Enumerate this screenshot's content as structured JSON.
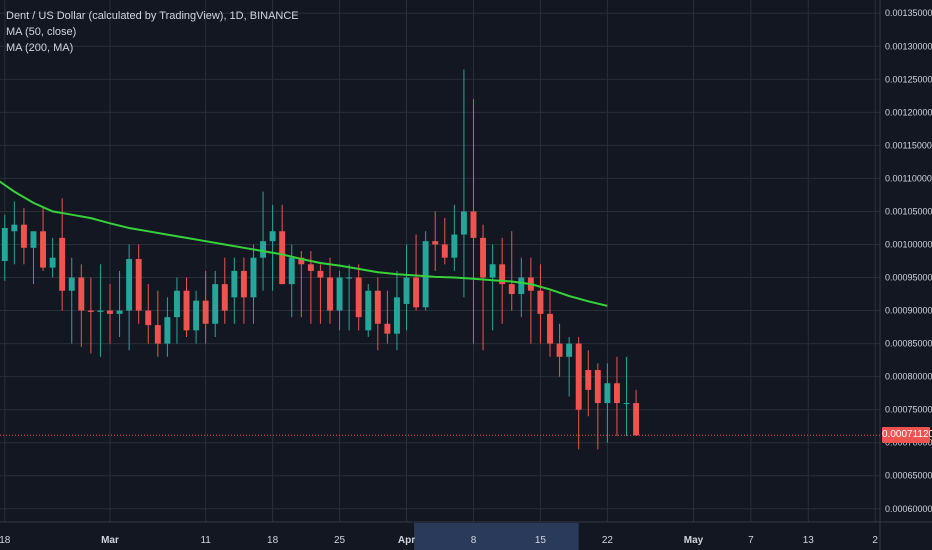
{
  "legend": {
    "symbol": "Dent / US Dollar (calculated by TradingView), 1D, BINANCE",
    "ma1": "MA (50, close)",
    "ma2": "MA (200, MA)"
  },
  "last_price": {
    "label": "0.00071120",
    "value": 0.0007112
  },
  "colors": {
    "background": "#131722",
    "grid": "#2a2e39",
    "up": "#26a69a",
    "down": "#ef5350",
    "ma": "#35d23a",
    "axis_text": "#d1d4dc",
    "highlight": "#2a3a5a"
  },
  "chart_data": {
    "type": "candlestick",
    "ylim": [
      0.00058,
      0.00137
    ],
    "y_ticks": [
      0.0006,
      0.00065,
      0.0007,
      0.00075,
      0.0008,
      0.00085,
      0.0009,
      0.00095,
      0.001,
      0.00105,
      0.0011,
      0.00115,
      0.0012,
      0.00125,
      0.0013,
      0.00135
    ],
    "y_tick_labels": [
      "0.00060000",
      "0.00065000",
      "0.00070000",
      "0.00075000",
      "0.00080000",
      "0.00085000",
      "0.00090000",
      "0.00095000",
      "0.00100000",
      "0.00105000",
      "0.00110000",
      "0.00115000",
      "0.00120000",
      "0.00125000",
      "0.00130000",
      "0.00135000"
    ],
    "x_ticks": [
      {
        "label": "18",
        "day": 0
      },
      {
        "label": "Mar",
        "day": 11
      },
      {
        "label": "11",
        "day": 21
      },
      {
        "label": "18",
        "day": 28
      },
      {
        "label": "25",
        "day": 35
      },
      {
        "label": "Apr",
        "day": 42
      },
      {
        "label": "8",
        "day": 49
      },
      {
        "label": "15",
        "day": 56
      },
      {
        "label": "22",
        "day": 63
      },
      {
        "label": "May",
        "day": 72
      },
      {
        "label": "7",
        "day": 78
      },
      {
        "label": "13",
        "day": 84
      },
      {
        "label": "2",
        "day": 91
      }
    ],
    "x_range_days": [
      -0.5,
      91.5
    ],
    "highlight_days": [
      43,
      60
    ],
    "candles": [
      {
        "o": 0.000975,
        "h": 0.001045,
        "l": 0.000945,
        "c": 0.001025
      },
      {
        "o": 0.00102,
        "h": 0.001065,
        "l": 0.00097,
        "c": 0.00103
      },
      {
        "o": 0.00103,
        "h": 0.001055,
        "l": 0.00097,
        "c": 0.000995
      },
      {
        "o": 0.000995,
        "h": 0.001015,
        "l": 0.00094,
        "c": 0.00102
      },
      {
        "o": 0.00102,
        "h": 0.001055,
        "l": 0.00096,
        "c": 0.000965
      },
      {
        "o": 0.000965,
        "h": 0.00101,
        "l": 0.00095,
        "c": 0.00098
      },
      {
        "o": 0.00101,
        "h": 0.00107,
        "l": 0.0009,
        "c": 0.00093
      },
      {
        "o": 0.00093,
        "h": 0.00098,
        "l": 0.00085,
        "c": 0.00095
      },
      {
        "o": 0.00095,
        "h": 0.00097,
        "l": 0.000845,
        "c": 0.0009
      },
      {
        "o": 0.0009,
        "h": 0.00095,
        "l": 0.000835,
        "c": 0.000898
      },
      {
        "o": 0.000898,
        "h": 0.00097,
        "l": 0.00083,
        "c": 0.0009
      },
      {
        "o": 0.0009,
        "h": 0.00094,
        "l": 0.00085,
        "c": 0.000895
      },
      {
        "o": 0.000895,
        "h": 0.00096,
        "l": 0.00086,
        "c": 0.0009
      },
      {
        "o": 0.0009,
        "h": 0.001,
        "l": 0.00084,
        "c": 0.000978
      },
      {
        "o": 0.000978,
        "h": 0.001,
        "l": 0.00088,
        "c": 0.0009
      },
      {
        "o": 0.0009,
        "h": 0.00094,
        "l": 0.00085,
        "c": 0.000878
      },
      {
        "o": 0.000878,
        "h": 0.00093,
        "l": 0.00083,
        "c": 0.00085
      },
      {
        "o": 0.00085,
        "h": 0.00092,
        "l": 0.00083,
        "c": 0.00089
      },
      {
        "o": 0.00089,
        "h": 0.00095,
        "l": 0.00085,
        "c": 0.00093
      },
      {
        "o": 0.00093,
        "h": 0.00095,
        "l": 0.00086,
        "c": 0.00087
      },
      {
        "o": 0.00087,
        "h": 0.00093,
        "l": 0.00085,
        "c": 0.000915
      },
      {
        "o": 0.000915,
        "h": 0.00096,
        "l": 0.00085,
        "c": 0.00088
      },
      {
        "o": 0.00088,
        "h": 0.00096,
        "l": 0.00086,
        "c": 0.00094
      },
      {
        "o": 0.00094,
        "h": 0.00098,
        "l": 0.00088,
        "c": 0.0009
      },
      {
        "o": 0.00092,
        "h": 0.00098,
        "l": 0.00088,
        "c": 0.00096
      },
      {
        "o": 0.00096,
        "h": 0.00098,
        "l": 0.00088,
        "c": 0.00092
      },
      {
        "o": 0.00092,
        "h": 0.001,
        "l": 0.00088,
        "c": 0.00098
      },
      {
        "o": 0.00098,
        "h": 0.00108,
        "l": 0.00093,
        "c": 0.001005
      },
      {
        "o": 0.001005,
        "h": 0.00106,
        "l": 0.00093,
        "c": 0.00102
      },
      {
        "o": 0.00102,
        "h": 0.00106,
        "l": 0.00094,
        "c": 0.00094
      },
      {
        "o": 0.00094,
        "h": 0.001,
        "l": 0.00089,
        "c": 0.00098
      },
      {
        "o": 0.00098,
        "h": 0.00099,
        "l": 0.00089,
        "c": 0.00097
      },
      {
        "o": 0.00097,
        "h": 0.00099,
        "l": 0.00088,
        "c": 0.00096
      },
      {
        "o": 0.00096,
        "h": 0.00097,
        "l": 0.00088,
        "c": 0.00095
      },
      {
        "o": 0.00095,
        "h": 0.00098,
        "l": 0.00088,
        "c": 0.0009
      },
      {
        "o": 0.0009,
        "h": 0.00096,
        "l": 0.00087,
        "c": 0.00095
      },
      {
        "o": 0.00095,
        "h": 0.00097,
        "l": 0.00087,
        "c": 0.00095
      },
      {
        "o": 0.00095,
        "h": 0.00097,
        "l": 0.00087,
        "c": 0.00089
      },
      {
        "o": 0.00087,
        "h": 0.00094,
        "l": 0.00086,
        "c": 0.00093
      },
      {
        "o": 0.00093,
        "h": 0.00095,
        "l": 0.00084,
        "c": 0.00088
      },
      {
        "o": 0.00088,
        "h": 0.00093,
        "l": 0.00085,
        "c": 0.000865
      },
      {
        "o": 0.000865,
        "h": 0.00096,
        "l": 0.00084,
        "c": 0.00092
      },
      {
        "o": 0.00091,
        "h": 0.001,
        "l": 0.00087,
        "c": 0.00095
      },
      {
        "o": 0.00095,
        "h": 0.001015,
        "l": 0.0009,
        "c": 0.000905
      },
      {
        "o": 0.000905,
        "h": 0.00102,
        "l": 0.0009,
        "c": 0.001005
      },
      {
        "o": 0.001005,
        "h": 0.00105,
        "l": 0.00096,
        "c": 0.001
      },
      {
        "o": 0.001,
        "h": 0.00104,
        "l": 0.00097,
        "c": 0.00098
      },
      {
        "o": 0.00098,
        "h": 0.00106,
        "l": 0.00096,
        "c": 0.001015
      },
      {
        "o": 0.001015,
        "h": 0.001265,
        "l": 0.00092,
        "c": 0.00105
      },
      {
        "o": 0.00105,
        "h": 0.00122,
        "l": 0.00085,
        "c": 0.00101
      },
      {
        "o": 0.00101,
        "h": 0.00103,
        "l": 0.00084,
        "c": 0.00095
      },
      {
        "o": 0.00095,
        "h": 0.001,
        "l": 0.00087,
        "c": 0.00097
      },
      {
        "o": 0.00097,
        "h": 0.00101,
        "l": 0.00088,
        "c": 0.00094
      },
      {
        "o": 0.00094,
        "h": 0.00102,
        "l": 0.0009,
        "c": 0.000925
      },
      {
        "o": 0.000925,
        "h": 0.00098,
        "l": 0.00089,
        "c": 0.00095
      },
      {
        "o": 0.00095,
        "h": 0.00098,
        "l": 0.00085,
        "c": 0.00093
      },
      {
        "o": 0.00093,
        "h": 0.00097,
        "l": 0.00085,
        "c": 0.000895
      },
      {
        "o": 0.000895,
        "h": 0.00093,
        "l": 0.00083,
        "c": 0.00085
      },
      {
        "o": 0.00085,
        "h": 0.00088,
        "l": 0.0008,
        "c": 0.00083
      },
      {
        "o": 0.00083,
        "h": 0.00086,
        "l": 0.00077,
        "c": 0.00085
      },
      {
        "o": 0.00085,
        "h": 0.00086,
        "l": 0.00069,
        "c": 0.00075
      },
      {
        "o": 0.00081,
        "h": 0.00084,
        "l": 0.00074,
        "c": 0.00078
      },
      {
        "o": 0.00081,
        "h": 0.00082,
        "l": 0.00069,
        "c": 0.00076
      },
      {
        "o": 0.00076,
        "h": 0.00082,
        "l": 0.0007,
        "c": 0.00079
      },
      {
        "o": 0.00079,
        "h": 0.00083,
        "l": 0.00071,
        "c": 0.00076
      },
      {
        "o": 0.00076,
        "h": 0.00083,
        "l": 0.00071,
        "c": 0.00076
      },
      {
        "o": 0.00076,
        "h": 0.00078,
        "l": 0.00071,
        "c": 0.0007112
      }
    ],
    "ma_series": [
      {
        "day": -1,
        "v": 0.0011
      },
      {
        "day": 1,
        "v": 0.00108
      },
      {
        "day": 3,
        "v": 0.001063
      },
      {
        "day": 5,
        "v": 0.00105
      },
      {
        "day": 7,
        "v": 0.001045
      },
      {
        "day": 9,
        "v": 0.00104
      },
      {
        "day": 11,
        "v": 0.001032
      },
      {
        "day": 13,
        "v": 0.001025
      },
      {
        "day": 15,
        "v": 0.00102
      },
      {
        "day": 17,
        "v": 0.001015
      },
      {
        "day": 19,
        "v": 0.00101
      },
      {
        "day": 21,
        "v": 0.001005
      },
      {
        "day": 23,
        "v": 0.001
      },
      {
        "day": 25,
        "v": 0.000995
      },
      {
        "day": 27,
        "v": 0.00099
      },
      {
        "day": 29,
        "v": 0.000985
      },
      {
        "day": 31,
        "v": 0.000978
      },
      {
        "day": 33,
        "v": 0.000972
      },
      {
        "day": 35,
        "v": 0.000968
      },
      {
        "day": 37,
        "v": 0.000963
      },
      {
        "day": 39,
        "v": 0.000958
      },
      {
        "day": 41,
        "v": 0.000955
      },
      {
        "day": 43,
        "v": 0.000953
      },
      {
        "day": 45,
        "v": 0.000951
      },
      {
        "day": 47,
        "v": 0.00095
      },
      {
        "day": 49,
        "v": 0.000948
      },
      {
        "day": 51,
        "v": 0.000946
      },
      {
        "day": 53,
        "v": 0.000944
      },
      {
        "day": 55,
        "v": 0.00094
      },
      {
        "day": 57,
        "v": 0.000932
      },
      {
        "day": 59,
        "v": 0.000922
      },
      {
        "day": 61,
        "v": 0.000914
      },
      {
        "day": 63,
        "v": 0.000907
      }
    ]
  }
}
